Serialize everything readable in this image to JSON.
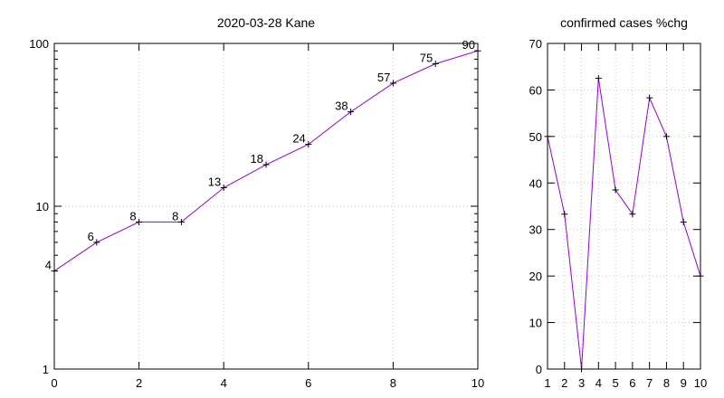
{
  "chart_data": [
    {
      "type": "line",
      "title": "2020-03-28 Kane",
      "xlabel": "",
      "ylabel": "",
      "yscale": "log",
      "xlim": [
        0,
        10
      ],
      "ylim": [
        1,
        100
      ],
      "xticks": [
        "0",
        "2",
        "4",
        "6",
        "8",
        "10"
      ],
      "yticks": [
        "1",
        "10",
        "100"
      ],
      "grid": true,
      "line_color": "#9400d3",
      "series": [
        {
          "x": [
            0,
            1,
            2,
            3,
            4,
            5,
            6,
            7,
            8,
            9,
            10
          ],
          "values": [
            4,
            6,
            8,
            8,
            13,
            18,
            24,
            38,
            57,
            75,
            90
          ],
          "labels": [
            "4",
            "6",
            "8",
            "8",
            "13",
            "18",
            "24",
            "38",
            "57",
            "75",
            "90"
          ]
        }
      ]
    },
    {
      "type": "line",
      "title": "confirmed cases %chg",
      "xlabel": "",
      "ylabel": "",
      "xlim": [
        1,
        10
      ],
      "ylim": [
        0,
        70
      ],
      "xticks": [
        "1",
        "2",
        "3",
        "4",
        "5",
        "6",
        "7",
        "8",
        "9",
        "10"
      ],
      "yticks": [
        "0",
        "10",
        "20",
        "30",
        "40",
        "50",
        "60",
        "70"
      ],
      "grid": true,
      "line_color": "#9400d3",
      "series": [
        {
          "x": [
            1,
            2,
            3,
            4,
            5,
            6,
            7,
            8,
            9,
            10
          ],
          "values": [
            50,
            33.3,
            0,
            62.5,
            38.5,
            33.3,
            58.3,
            50,
            31.6,
            20
          ]
        }
      ]
    }
  ]
}
